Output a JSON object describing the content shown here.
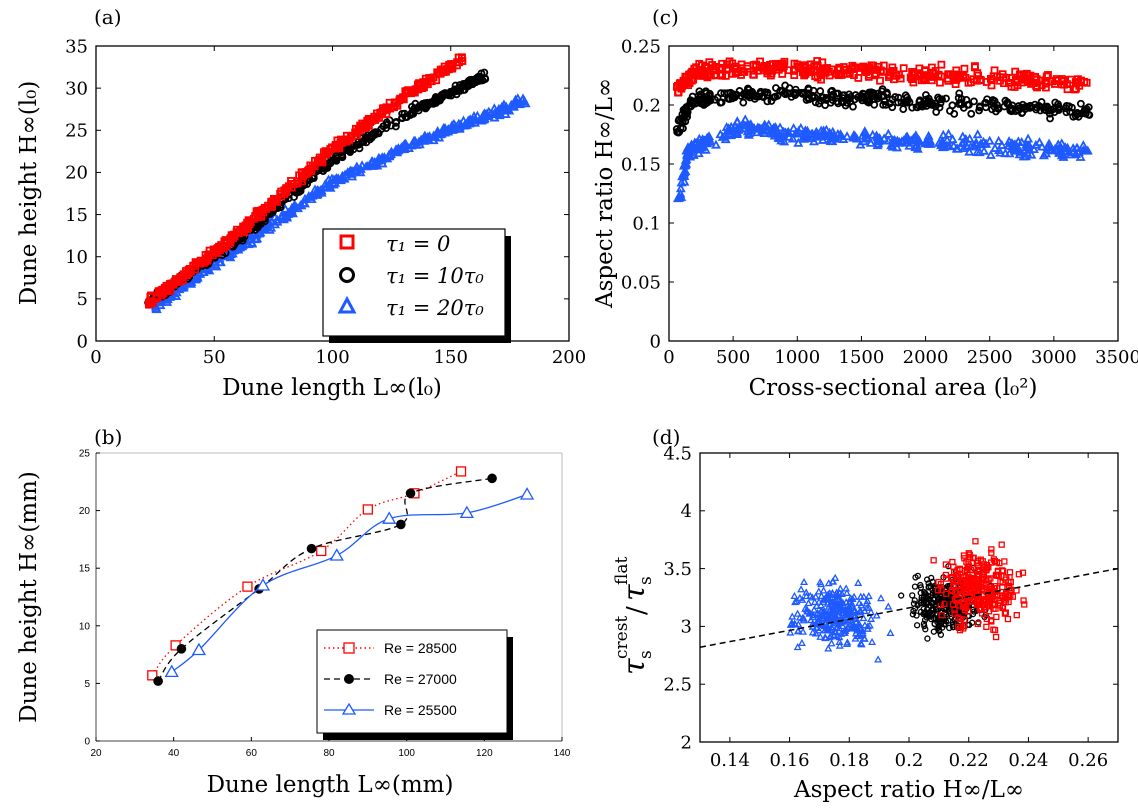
{
  "colors": {
    "red": "#ff0000",
    "black": "#000000",
    "blue": "#1e5aff"
  },
  "chart_data": [
    {
      "panel_label": "(a)",
      "type": "scatter",
      "xlabel": "Dune length L∞(l₀)",
      "ylabel": "Dune height H∞(l₀)",
      "xlim": [
        0,
        200
      ],
      "ylim": [
        0,
        35
      ],
      "xticks": [
        0,
        50,
        100,
        150,
        200
      ],
      "yticks": [
        0,
        5,
        10,
        15,
        20,
        25,
        30,
        35
      ],
      "legend_position": "bottom-right",
      "series": [
        {
          "name": "τ₁ = 0",
          "marker": "square",
          "color": "#ff0000",
          "x_range": [
            22,
            155
          ],
          "trend": [
            [
              22,
              4.5
            ],
            [
              60,
              12.8
            ],
            [
              100,
              22.8
            ],
            [
              130,
              29.0
            ],
            [
              155,
              33.5
            ]
          ]
        },
        {
          "name": "τ₁ = 10τ₀",
          "marker": "circle",
          "color": "#000000",
          "x_range": [
            22,
            165
          ],
          "trend": [
            [
              22,
              4.4
            ],
            [
              60,
              12.0
            ],
            [
              100,
              21.5
            ],
            [
              135,
              27.5
            ],
            [
              165,
              31.5
            ]
          ]
        },
        {
          "name": "τ₁ = 20τ₀",
          "marker": "triangle",
          "color": "#1e5aff",
          "x_range": [
            25,
            182
          ],
          "trend": [
            [
              25,
              4.2
            ],
            [
              60,
              11.0
            ],
            [
              100,
              18.8
            ],
            [
              140,
              24.2
            ],
            [
              182,
              28.5
            ]
          ]
        }
      ]
    },
    {
      "panel_label": "(c)",
      "type": "scatter",
      "xlabel": "Cross-sectional area (l₀²)",
      "ylabel": "Aspect ratio H∞/L∞",
      "xlim": [
        0,
        3500
      ],
      "ylim": [
        0,
        0.25
      ],
      "xticks": [
        0,
        500,
        1000,
        1500,
        2000,
        2500,
        3000,
        3500
      ],
      "yticks": [
        0,
        0.05,
        0.1,
        0.15,
        0.2,
        0.25
      ],
      "series": [
        {
          "name": "τ₁ = 0",
          "marker": "square",
          "color": "#ff0000",
          "x_range": [
            60,
            3280
          ],
          "trend": [
            [
              60,
              0.212
            ],
            [
              200,
              0.228
            ],
            [
              800,
              0.232
            ],
            [
              2000,
              0.226
            ],
            [
              3280,
              0.218
            ]
          ]
        },
        {
          "name": "τ₁ = 10τ₀",
          "marker": "circle",
          "color": "#000000",
          "x_range": [
            60,
            3280
          ],
          "trend": [
            [
              60,
              0.18
            ],
            [
              200,
              0.205
            ],
            [
              800,
              0.21
            ],
            [
              2000,
              0.202
            ],
            [
              3280,
              0.195
            ]
          ]
        },
        {
          "name": "τ₁ = 20τ₀",
          "marker": "triangle",
          "color": "#1e5aff",
          "x_range": [
            60,
            3280
          ],
          "trend": [
            [
              60,
              0.11
            ],
            [
              150,
              0.16
            ],
            [
              500,
              0.18
            ],
            [
              1500,
              0.172
            ],
            [
              3280,
              0.16
            ]
          ]
        }
      ]
    },
    {
      "panel_label": "(b)",
      "type": "line",
      "xlabel": "Dune length L∞(mm)",
      "ylabel": "Dune height H∞(mm)",
      "xlim": [
        20,
        140
      ],
      "ylim": [
        0,
        25
      ],
      "xticks": [
        20,
        40,
        60,
        80,
        100,
        120,
        140
      ],
      "yticks": [
        0,
        5,
        10,
        15,
        20,
        25
      ],
      "legend_position": "bottom-right",
      "series": [
        {
          "name": "Re = 28500",
          "marker": "square",
          "line": "dotted",
          "color": "#ff0000",
          "points": [
            [
              34.5,
              5.7
            ],
            [
              40.5,
              8.3
            ],
            [
              59,
              13.4
            ],
            [
              78,
              16.5
            ],
            [
              90,
              20.1
            ],
            [
              102,
              21.5
            ],
            [
              114,
              23.4
            ]
          ]
        },
        {
          "name": "Re = 27000",
          "marker": "filled-circle",
          "line": "dashed",
          "color": "#000000",
          "points": [
            [
              36,
              5.2
            ],
            [
              42,
              8.0
            ],
            [
              62,
              13.2
            ],
            [
              75.5,
              16.7
            ],
            [
              98.5,
              18.8
            ],
            [
              101,
              21.5
            ],
            [
              122,
              22.8
            ]
          ]
        },
        {
          "name": "Re = 25500",
          "marker": "triangle",
          "line": "solid",
          "color": "#1e5aff",
          "points": [
            [
              39.5,
              6.0
            ],
            [
              46.5,
              7.9
            ],
            [
              63,
              13.5
            ],
            [
              82,
              16.1
            ],
            [
              95.5,
              19.3
            ],
            [
              115.5,
              19.8
            ],
            [
              131,
              21.4
            ]
          ]
        }
      ]
    },
    {
      "panel_label": "(d)",
      "type": "scatter",
      "xlabel": "Aspect ratio H∞/L∞",
      "ylabel": "τ_s^crest / τ_s^flat",
      "xlim": [
        0.13,
        0.27
      ],
      "ylim": [
        2,
        4.5
      ],
      "xticks": [
        0.14,
        0.16,
        0.18,
        0.2,
        0.22,
        0.24,
        0.26
      ],
      "yticks": [
        2,
        2.5,
        3,
        3.5,
        4,
        4.5
      ],
      "fit_line": {
        "style": "dashed",
        "color": "#000000",
        "points": [
          [
            0.13,
            2.82
          ],
          [
            0.27,
            3.5
          ]
        ]
      },
      "series": [
        {
          "name": "τ₁ = 20τ₀",
          "marker": "triangle",
          "color": "#1e5aff",
          "x_range": [
            0.15,
            0.2
          ],
          "y_range": [
            2.4,
            3.8
          ]
        },
        {
          "name": "τ₁ = 10τ₀",
          "marker": "circle",
          "color": "#000000",
          "x_range": [
            0.19,
            0.235
          ],
          "y_range": [
            2.55,
            3.85
          ]
        },
        {
          "name": "τ₁ = 0",
          "marker": "square",
          "color": "#ff0000",
          "x_range": [
            0.2,
            0.248
          ],
          "y_range": [
            2.5,
            4.15
          ]
        }
      ]
    }
  ]
}
